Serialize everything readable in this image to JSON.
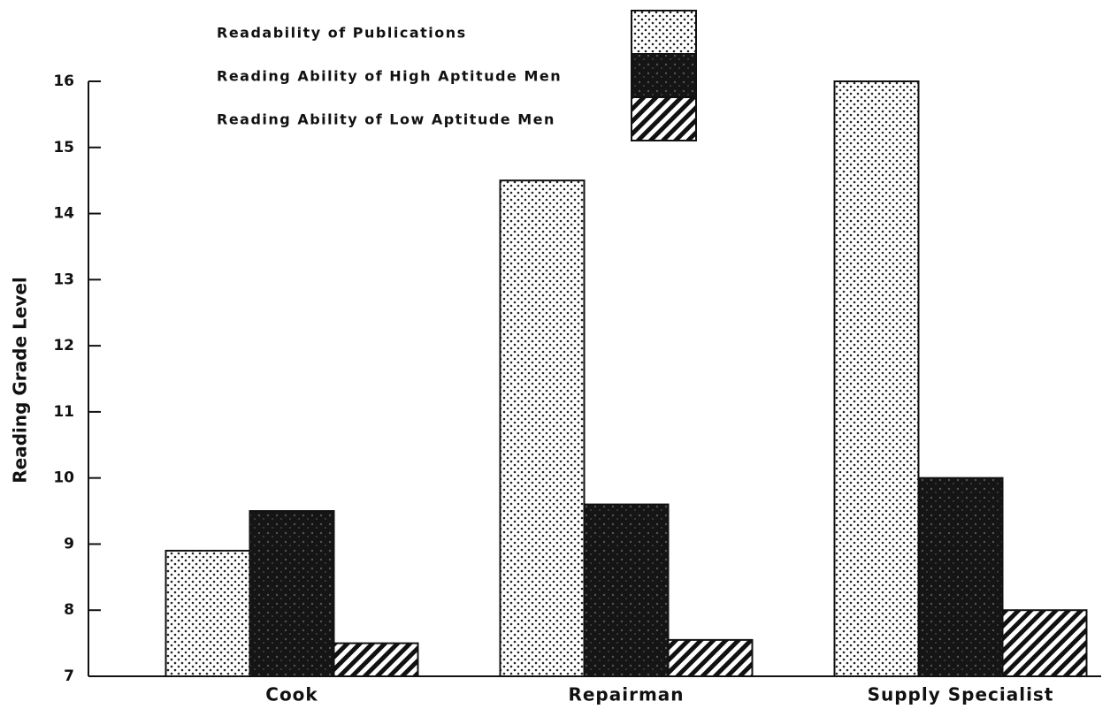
{
  "chart_data": {
    "type": "bar",
    "y_label": "Reading Grade Level",
    "categories": [
      "Cook",
      "Repairman",
      "Supply Specialist"
    ],
    "series": [
      {
        "name": "Readability of Publications",
        "color": "#ffffff",
        "pattern": "dots",
        "values": [
          8.9,
          14.5,
          16
        ]
      },
      {
        "name": "Reading Ability of High Aptitude Men",
        "color": "#151515",
        "pattern": "dark",
        "values": [
          9.5,
          9.6,
          10
        ]
      },
      {
        "name": "Reading Ability of Low Aptitude Men",
        "color": "#ffffff",
        "pattern": "hatch",
        "values": [
          7.5,
          7.55,
          8
        ]
      }
    ],
    "ylim": [
      7,
      16
    ],
    "yticks": [
      7,
      8,
      9,
      10,
      11,
      12,
      13,
      14,
      15,
      16
    ]
  }
}
